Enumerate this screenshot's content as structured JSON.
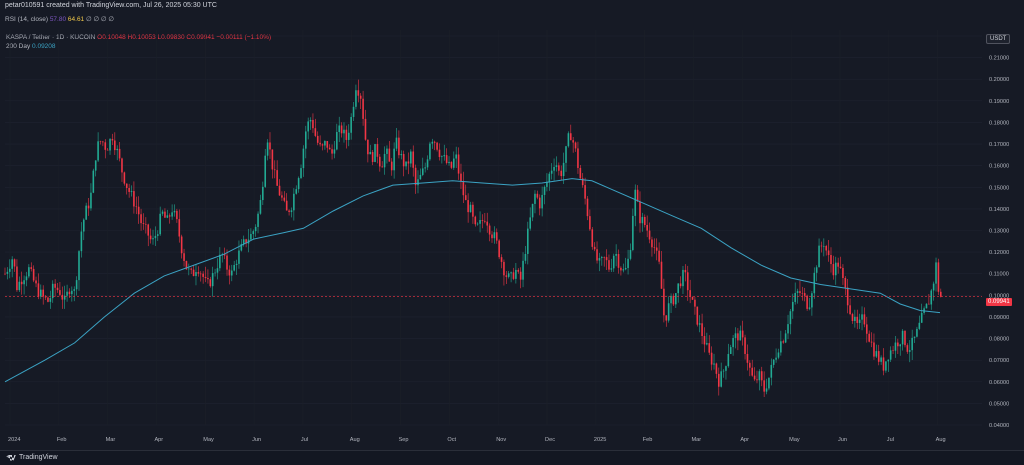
{
  "header": {
    "credit": "petar010591 created with TradingView.com, Jul 26, 2025 05:30 UTC",
    "rsi_label": "RSI (14, close)",
    "rsi_value1": "57.80",
    "rsi_value2": "64.61",
    "rsi_icons": "∅ ∅ ∅ ∅"
  },
  "legend": {
    "symbol": "KASPA / Tether · 1D · KUCOIN",
    "ohlc": "O0.10048 H0.10053 L0.09830 C0.09941 −0.00111 (−1.10%)",
    "ma_label": "200 Day",
    "ma_value": "0.09208"
  },
  "currency_badge": "USDT",
  "last_price_label": "0.09941",
  "footer": {
    "brand": "TradingView"
  },
  "colors": {
    "up": "#22ab94",
    "down": "#f23645",
    "ma": "#3ba3c4",
    "background": "#161a25"
  },
  "chart_data": {
    "type": "candlestick",
    "ylim": [
      0.04,
      0.22
    ],
    "yticks": [
      "0.04000",
      "0.05000",
      "0.06000",
      "0.07000",
      "0.08000",
      "0.09000",
      "0.10000",
      "0.11000",
      "0.12000",
      "0.13000",
      "0.14000",
      "0.15000",
      "0.16000",
      "0.17000",
      "0.18000",
      "0.19000",
      "0.20000",
      "0.21000",
      "0.22000"
    ],
    "xticks": [
      "2024",
      "Feb",
      "Mar",
      "Apr",
      "May",
      "Jun",
      "Jul",
      "Aug",
      "Sep",
      "Oct",
      "Nov",
      "Dec",
      "2025",
      "Feb",
      "Mar",
      "Apr",
      "May",
      "Jun",
      "Jul",
      "Aug"
    ],
    "last_price": 0.09941,
    "price_path": [
      [
        0,
        0.11
      ],
      [
        8,
        0.118
      ],
      [
        12,
        0.104
      ],
      [
        17,
        0.108
      ],
      [
        24,
        0.112
      ],
      [
        32,
        0.103
      ],
      [
        38,
        0.099
      ],
      [
        44,
        0.097
      ],
      [
        49,
        0.104
      ],
      [
        55,
        0.102
      ],
      [
        60,
        0.097
      ],
      [
        66,
        0.105
      ],
      [
        70,
        0.101
      ],
      [
        76,
        0.128
      ],
      [
        80,
        0.137
      ],
      [
        86,
        0.145
      ],
      [
        92,
        0.168
      ],
      [
        97,
        0.172
      ],
      [
        102,
        0.168
      ],
      [
        108,
        0.174
      ],
      [
        113,
        0.166
      ],
      [
        118,
        0.157
      ],
      [
        123,
        0.15
      ],
      [
        128,
        0.145
      ],
      [
        133,
        0.14
      ],
      [
        138,
        0.132
      ],
      [
        143,
        0.129
      ],
      [
        148,
        0.124
      ],
      [
        153,
        0.13
      ],
      [
        158,
        0.138
      ],
      [
        163,
        0.134
      ],
      [
        168,
        0.14
      ],
      [
        173,
        0.133
      ],
      [
        178,
        0.121
      ],
      [
        183,
        0.112
      ],
      [
        188,
        0.109
      ],
      [
        193,
        0.114
      ],
      [
        198,
        0.11
      ],
      [
        203,
        0.104
      ],
      [
        208,
        0.108
      ],
      [
        213,
        0.114
      ],
      [
        218,
        0.119
      ],
      [
        223,
        0.113
      ],
      [
        228,
        0.11
      ],
      [
        233,
        0.117
      ],
      [
        238,
        0.122
      ],
      [
        243,
        0.126
      ],
      [
        248,
        0.128
      ],
      [
        253,
        0.134
      ],
      [
        258,
        0.146
      ],
      [
        263,
        0.176
      ],
      [
        268,
        0.162
      ],
      [
        273,
        0.151
      ],
      [
        278,
        0.145
      ],
      [
        283,
        0.138
      ],
      [
        288,
        0.142
      ],
      [
        293,
        0.152
      ],
      [
        298,
        0.162
      ],
      [
        303,
        0.178
      ],
      [
        308,
        0.182
      ],
      [
        313,
        0.172
      ],
      [
        318,
        0.167
      ],
      [
        323,
        0.171
      ],
      [
        328,
        0.164
      ],
      [
        333,
        0.174
      ],
      [
        338,
        0.177
      ],
      [
        343,
        0.172
      ],
      [
        348,
        0.182
      ],
      [
        353,
        0.198
      ],
      [
        358,
        0.192
      ],
      [
        363,
        0.17
      ],
      [
        368,
        0.163
      ],
      [
        373,
        0.168
      ],
      [
        378,
        0.16
      ],
      [
        383,
        0.167
      ],
      [
        388,
        0.158
      ],
      [
        393,
        0.171
      ],
      [
        398,
        0.164
      ],
      [
        403,
        0.159
      ],
      [
        408,
        0.165
      ],
      [
        413,
        0.15
      ],
      [
        418,
        0.155
      ],
      [
        423,
        0.16
      ],
      [
        428,
        0.174
      ],
      [
        433,
        0.171
      ],
      [
        438,
        0.165
      ],
      [
        443,
        0.162
      ],
      [
        448,
        0.158
      ],
      [
        453,
        0.165
      ],
      [
        458,
        0.152
      ],
      [
        463,
        0.143
      ],
      [
        468,
        0.139
      ],
      [
        473,
        0.13
      ],
      [
        478,
        0.133
      ],
      [
        483,
        0.137
      ],
      [
        488,
        0.13
      ],
      [
        493,
        0.126
      ],
      [
        498,
        0.118
      ],
      [
        503,
        0.11
      ],
      [
        508,
        0.107
      ],
      [
        513,
        0.112
      ],
      [
        518,
        0.106
      ],
      [
        523,
        0.121
      ],
      [
        528,
        0.135
      ],
      [
        533,
        0.147
      ],
      [
        538,
        0.142
      ],
      [
        543,
        0.15
      ],
      [
        548,
        0.157
      ],
      [
        553,
        0.163
      ],
      [
        558,
        0.155
      ],
      [
        563,
        0.164
      ],
      [
        568,
        0.176
      ],
      [
        573,
        0.168
      ],
      [
        578,
        0.155
      ],
      [
        583,
        0.145
      ],
      [
        588,
        0.132
      ],
      [
        593,
        0.118
      ],
      [
        598,
        0.114
      ],
      [
        603,
        0.117
      ],
      [
        608,
        0.112
      ],
      [
        613,
        0.121
      ],
      [
        618,
        0.114
      ],
      [
        623,
        0.11
      ],
      [
        628,
        0.119
      ],
      [
        633,
        0.149
      ],
      [
        638,
        0.136
      ],
      [
        643,
        0.133
      ],
      [
        648,
        0.128
      ],
      [
        653,
        0.122
      ],
      [
        658,
        0.113
      ],
      [
        663,
        0.088
      ],
      [
        668,
        0.096
      ],
      [
        673,
        0.099
      ],
      [
        678,
        0.106
      ],
      [
        683,
        0.11
      ],
      [
        688,
        0.101
      ],
      [
        693,
        0.093
      ],
      [
        698,
        0.086
      ],
      [
        703,
        0.079
      ],
      [
        708,
        0.072
      ],
      [
        713,
        0.068
      ],
      [
        718,
        0.06
      ],
      [
        723,
        0.066
      ],
      [
        728,
        0.076
      ],
      [
        733,
        0.08
      ],
      [
        738,
        0.082
      ],
      [
        743,
        0.077
      ],
      [
        748,
        0.067
      ],
      [
        753,
        0.059
      ],
      [
        758,
        0.063
      ],
      [
        763,
        0.056
      ],
      [
        768,
        0.062
      ],
      [
        773,
        0.07
      ],
      [
        778,
        0.077
      ],
      [
        783,
        0.081
      ],
      [
        788,
        0.09
      ],
      [
        793,
        0.098
      ],
      [
        798,
        0.102
      ],
      [
        803,
        0.099
      ],
      [
        808,
        0.095
      ],
      [
        813,
        0.108
      ],
      [
        818,
        0.12
      ],
      [
        823,
        0.125
      ],
      [
        828,
        0.117
      ],
      [
        833,
        0.112
      ],
      [
        838,
        0.115
      ],
      [
        843,
        0.105
      ],
      [
        848,
        0.097
      ],
      [
        853,
        0.088
      ],
      [
        858,
        0.085
      ],
      [
        863,
        0.09
      ],
      [
        868,
        0.082
      ],
      [
        873,
        0.075
      ],
      [
        878,
        0.071
      ],
      [
        883,
        0.067
      ],
      [
        888,
        0.073
      ],
      [
        893,
        0.076
      ],
      [
        898,
        0.079
      ],
      [
        903,
        0.081
      ],
      [
        908,
        0.075
      ],
      [
        913,
        0.078
      ],
      [
        918,
        0.084
      ],
      [
        923,
        0.091
      ],
      [
        928,
        0.096
      ],
      [
        933,
        0.105
      ],
      [
        936,
        0.114
      ],
      [
        939,
        0.1
      ],
      [
        942,
        0.099
      ]
    ],
    "ma_path": [
      [
        0,
        0.06
      ],
      [
        40,
        0.07
      ],
      [
        70,
        0.078
      ],
      [
        100,
        0.09
      ],
      [
        130,
        0.101
      ],
      [
        160,
        0.109
      ],
      [
        190,
        0.114
      ],
      [
        220,
        0.119
      ],
      [
        250,
        0.126
      ],
      [
        280,
        0.129
      ],
      [
        300,
        0.131
      ],
      [
        330,
        0.139
      ],
      [
        360,
        0.146
      ],
      [
        390,
        0.151
      ],
      [
        420,
        0.152
      ],
      [
        450,
        0.153
      ],
      [
        480,
        0.152
      ],
      [
        510,
        0.151
      ],
      [
        540,
        0.152
      ],
      [
        570,
        0.154
      ],
      [
        590,
        0.153
      ],
      [
        610,
        0.149
      ],
      [
        640,
        0.143
      ],
      [
        670,
        0.137
      ],
      [
        700,
        0.131
      ],
      [
        730,
        0.122
      ],
      [
        760,
        0.114
      ],
      [
        790,
        0.108
      ],
      [
        820,
        0.105
      ],
      [
        850,
        0.103
      ],
      [
        880,
        0.101
      ],
      [
        900,
        0.096
      ],
      [
        920,
        0.093
      ],
      [
        940,
        0.092
      ]
    ]
  }
}
